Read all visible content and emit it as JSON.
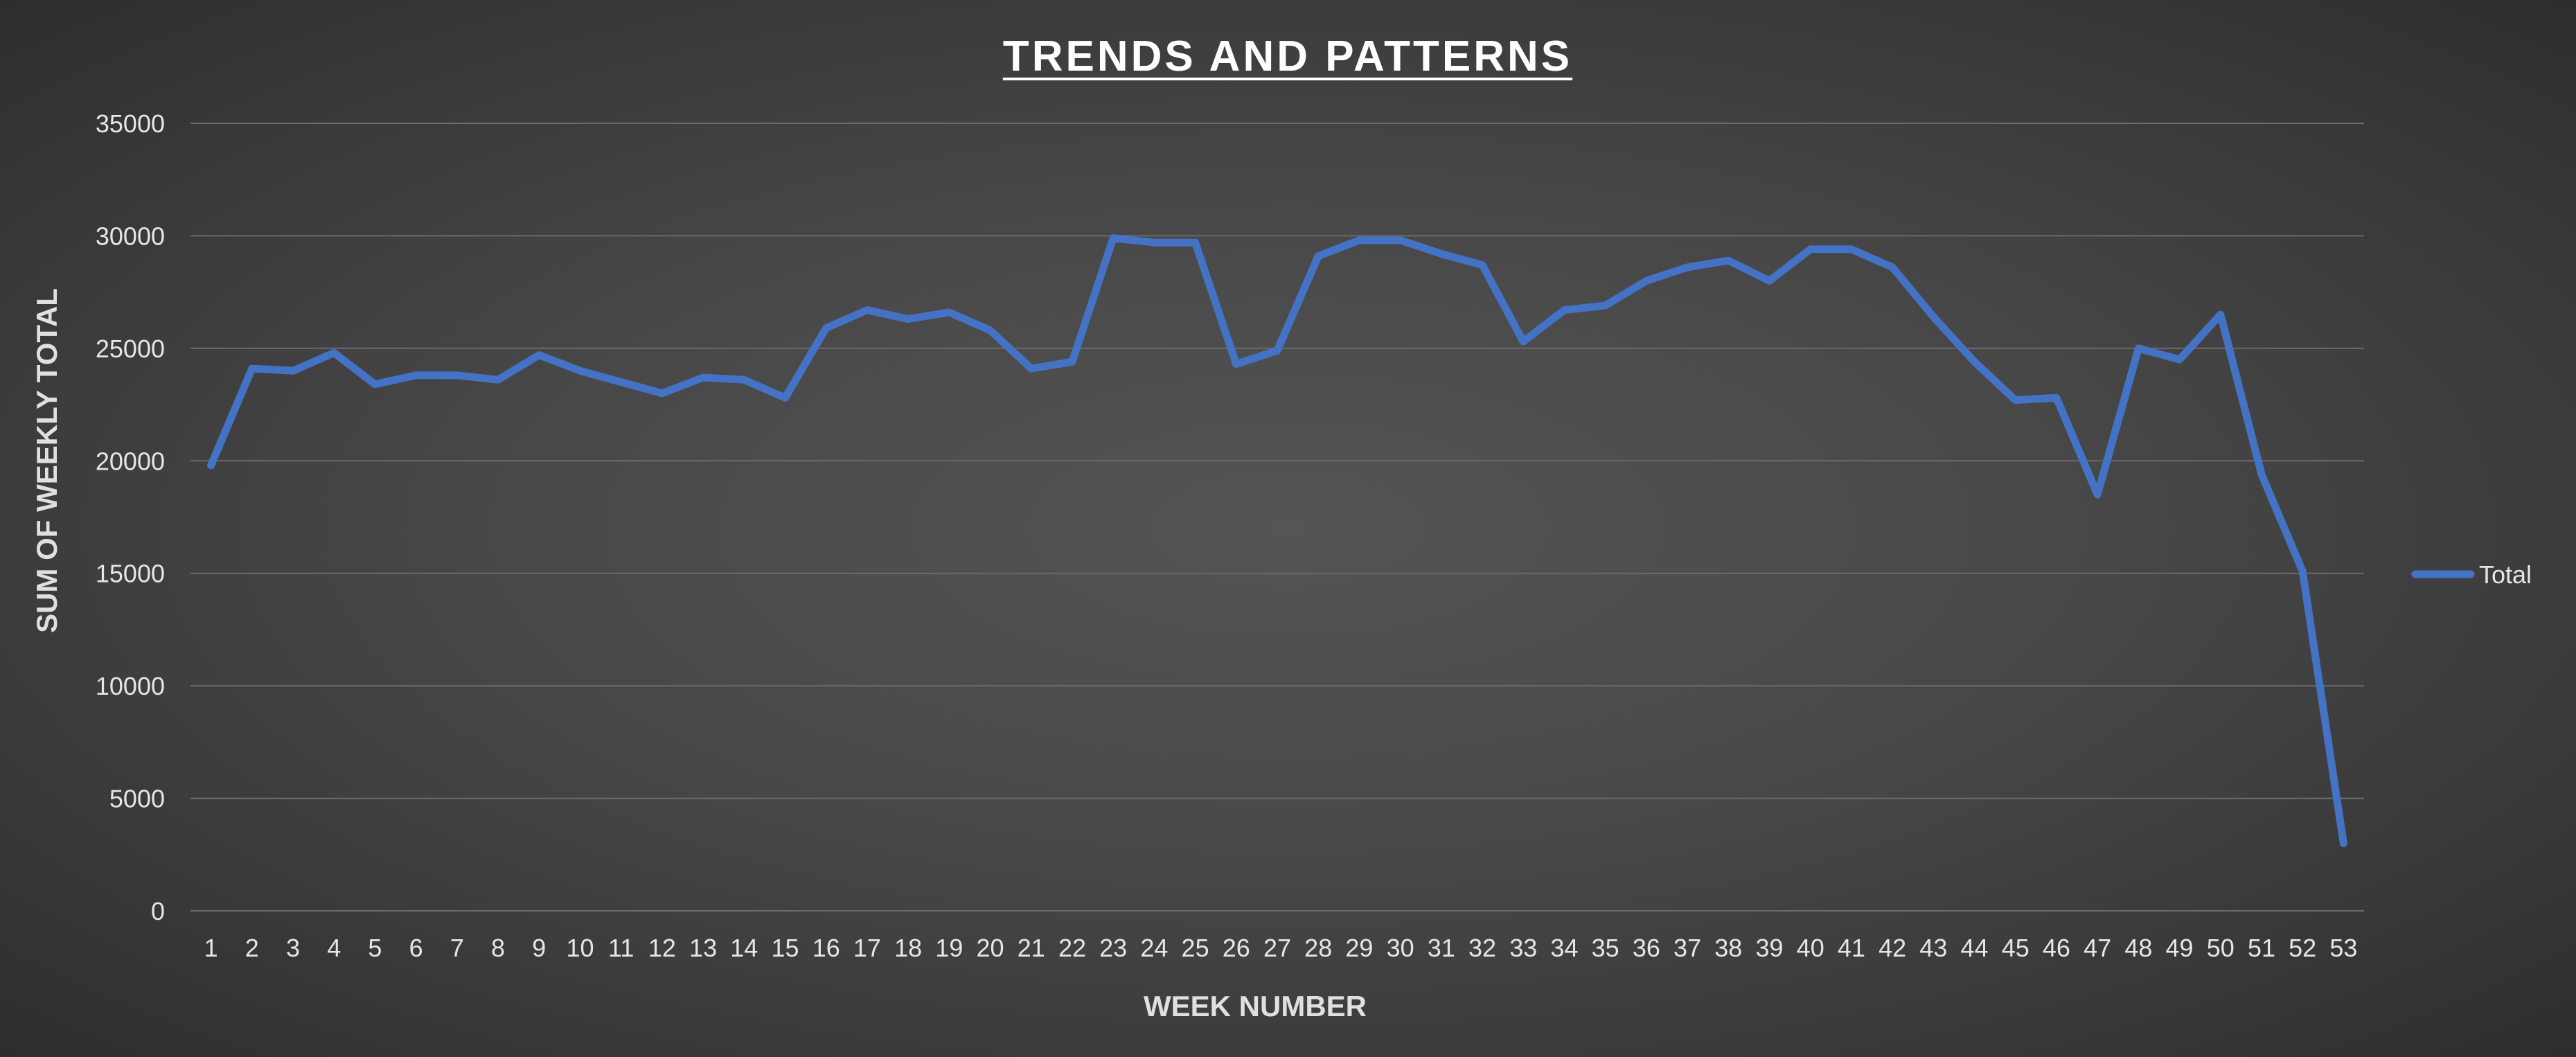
{
  "chart_data": {
    "type": "line",
    "title": "TRENDS AND PATTERNS",
    "xlabel": "WEEK NUMBER",
    "ylabel": "SUM OF WEEKLY TOTAL",
    "ylim": [
      0,
      35000
    ],
    "yticks": [
      0,
      5000,
      10000,
      15000,
      20000,
      25000,
      30000,
      35000
    ],
    "grid": true,
    "legend_position": "right",
    "categories": [
      "1",
      "2",
      "3",
      "4",
      "5",
      "6",
      "7",
      "8",
      "9",
      "10",
      "11",
      "12",
      "13",
      "14",
      "15",
      "16",
      "17",
      "18",
      "19",
      "20",
      "21",
      "22",
      "23",
      "24",
      "25",
      "26",
      "27",
      "28",
      "29",
      "30",
      "31",
      "32",
      "33",
      "34",
      "35",
      "36",
      "37",
      "38",
      "39",
      "40",
      "41",
      "42",
      "43",
      "44",
      "45",
      "46",
      "47",
      "48",
      "49",
      "50",
      "51",
      "52",
      "53"
    ],
    "series": [
      {
        "name": "Total",
        "color": "#4472C4",
        "values": [
          19800,
          24100,
          24000,
          24800,
          23400,
          23800,
          23800,
          23600,
          24700,
          24000,
          23500,
          23000,
          23700,
          23600,
          22800,
          25900,
          26700,
          26300,
          26600,
          25800,
          24100,
          24400,
          29900,
          29700,
          29700,
          24300,
          24900,
          29100,
          29800,
          29800,
          29200,
          28700,
          25300,
          26700,
          26900,
          28000,
          28600,
          28900,
          28000,
          29400,
          29400,
          28600,
          26400,
          24400,
          22700,
          22800,
          18500,
          25000,
          24500,
          26500,
          19400,
          15100,
          3000
        ]
      }
    ]
  }
}
